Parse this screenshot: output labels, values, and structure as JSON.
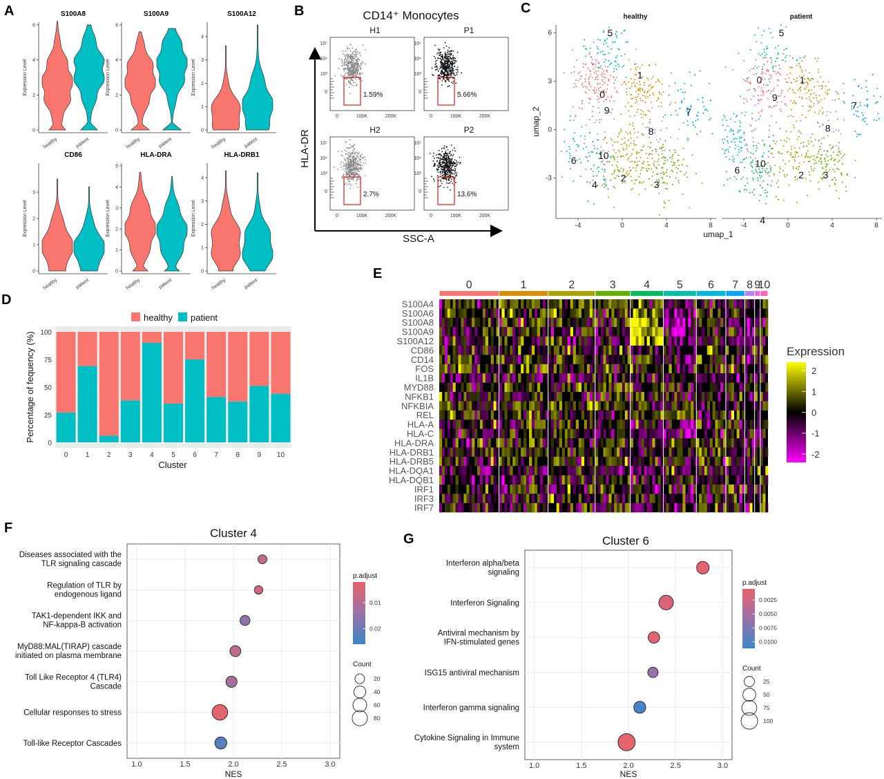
{
  "panel_labels": [
    "A",
    "B",
    "C",
    "D",
    "E",
    "F",
    "G"
  ],
  "colors": {
    "healthy": "#F8766D",
    "patient": "#00BFC4",
    "heat_low": "#FF00FF",
    "heat_mid": "#000000",
    "heat_high": "#FFFF00",
    "padj_high": "#E8636A",
    "padj_low": "#3A87C8",
    "gray_dots": "#888888",
    "gate": "#E00000"
  },
  "chart_data": [
    {
      "panel": "A",
      "type": "violin",
      "ylabel": "Expression Level",
      "groups": [
        "healthy",
        "patient"
      ],
      "genes": [
        {
          "name": "S100A8",
          "ylim": [
            0,
            6
          ],
          "ticks": [
            0,
            2,
            4,
            6
          ],
          "median": [
            2.6,
            3.4
          ],
          "max": [
            6.2,
            6.0
          ]
        },
        {
          "name": "S100A9",
          "ylim": [
            0,
            6
          ],
          "ticks": [
            0,
            2,
            4,
            6
          ],
          "median": [
            2.9,
            3.7
          ],
          "max": [
            5.6,
            5.8
          ]
        },
        {
          "name": "S100A12",
          "ylim": [
            0,
            4.5
          ],
          "ticks": [
            0,
            1,
            2,
            3,
            4
          ],
          "median": [
            0.6,
            0.9
          ],
          "max": [
            3.6,
            4.5
          ]
        },
        {
          "name": "CD86",
          "ylim": [
            0,
            4
          ],
          "ticks": [
            0,
            1,
            2,
            3
          ],
          "median": [
            0.9,
            0.8
          ],
          "max": [
            3.5,
            3.2
          ]
        },
        {
          "name": "HLA-DRA",
          "ylim": [
            0,
            5
          ],
          "ticks": [
            0,
            1,
            2,
            3,
            4,
            5
          ],
          "median": [
            2.0,
            1.8
          ],
          "max": [
            4.7,
            4.5
          ]
        },
        {
          "name": "HLA-DRB1",
          "ylim": [
            0,
            4.5
          ],
          "ticks": [
            0,
            1,
            2,
            3,
            4
          ],
          "median": [
            1.2,
            1.0
          ],
          "max": [
            4.3,
            4.2
          ]
        }
      ]
    },
    {
      "panel": "B",
      "type": "scatter",
      "title": "CD14⁺ Monocytes",
      "xlabel": "SSC-A",
      "ylabel": "HLA-DR",
      "x_ticks": [
        "0",
        "100K",
        "200K"
      ],
      "y_ticks": [
        "0",
        "10³",
        "10⁴",
        "10⁵"
      ],
      "plots": [
        {
          "name": "H1",
          "gate_percent": "1.59%"
        },
        {
          "name": "P1",
          "gate_percent": "5.66%"
        },
        {
          "name": "H2",
          "gate_percent": "2.7%"
        },
        {
          "name": "P2",
          "gate_percent": "13.6%"
        }
      ]
    },
    {
      "panel": "C",
      "type": "scatter",
      "xlabel": "umap_1",
      "ylabel": "umap_2",
      "xlim": [
        -6,
        8.5
      ],
      "ylim": [
        -5.5,
        6.5
      ],
      "x_ticks": [
        -4,
        0,
        4,
        8
      ],
      "y_ticks": [
        -3,
        0,
        3,
        6
      ],
      "facets": [
        "healthy",
        "patient"
      ],
      "cluster_colors": [
        "#F8766D",
        "#DB8E00",
        "#AEA200",
        "#64B200",
        "#00BD5C",
        "#00C1A7",
        "#00BADE",
        "#00A6FF",
        "#B385FF",
        "#EF67EB",
        "#FF63B6"
      ],
      "cluster_centers": [
        [
          -2.4,
          3
        ],
        [
          1.8,
          2.5
        ],
        [
          0.4,
          -1.8
        ],
        [
          3.6,
          -2.3
        ],
        [
          -2.8,
          -2.3
        ],
        [
          -1.4,
          4.9
        ],
        [
          -5.2,
          -0.7
        ],
        [
          6.8,
          1.4
        ],
        [
          3.2,
          0
        ],
        [
          -1.5,
          2
        ],
        [
          -2.2,
          -0.8
        ]
      ],
      "cluster_label_positions": {
        "healthy": [
          [
            -1.8,
            2.2
          ],
          [
            1.6,
            3.4
          ],
          [
            0.1,
            -3
          ],
          [
            3.1,
            -3.4
          ],
          [
            -2.5,
            -3.4
          ],
          [
            -1.1,
            6
          ],
          [
            -4.4,
            -1.9
          ],
          [
            6,
            1.1
          ],
          [
            2.6,
            -0.1
          ],
          [
            -1.4,
            1.2
          ],
          [
            -1.7,
            -1.6
          ]
        ],
        "patient": [
          [
            -2.6,
            3.1
          ],
          [
            1.3,
            3.1
          ],
          [
            1.2,
            -2.8
          ],
          [
            3.4,
            -2.8
          ],
          [
            -2.3,
            -5.6
          ],
          [
            -0.6,
            6
          ],
          [
            -4.6,
            -2.5
          ],
          [
            6,
            1.5
          ],
          [
            3.6,
            0.1
          ],
          [
            -1.2,
            2
          ],
          [
            -2.5,
            -2.1
          ]
        ],
        "labels": [
          "0",
          "1",
          "2",
          "3",
          "4",
          "5",
          "6",
          "7",
          "8",
          "9",
          "10"
        ]
      }
    },
    {
      "panel": "D",
      "type": "bar",
      "stacked": true,
      "categories": [
        "0",
        "1",
        "2",
        "3",
        "4",
        "5",
        "6",
        "7",
        "8",
        "9",
        "10"
      ],
      "series": [
        {
          "name": "patient",
          "values": [
            27,
            69,
            6,
            38,
            90,
            35,
            75,
            41,
            37,
            51,
            44
          ]
        },
        {
          "name": "healthy",
          "values": [
            73,
            31,
            94,
            62,
            10,
            65,
            25,
            59,
            63,
            49,
            56
          ]
        }
      ],
      "xlabel": "Cluster",
      "ylabel": "Percentage of fequency (%)",
      "ylim": [
        0,
        100
      ],
      "y_ticks": [
        0,
        25,
        50,
        75,
        100
      ],
      "legend": "top"
    },
    {
      "panel": "E",
      "type": "heatmap",
      "columns": [
        "0",
        "1",
        "2",
        "3",
        "4",
        "5",
        "6",
        "7",
        "8",
        "9",
        "10"
      ],
      "column_widths": [
        85,
        70,
        67,
        50,
        47,
        47,
        42,
        27,
        14,
        8,
        11
      ],
      "column_colors": [
        "#F8766D",
        "#DB8E00",
        "#AEA200",
        "#64B200",
        "#00BD5C",
        "#00C1A7",
        "#00BADE",
        "#00A6FF",
        "#B385FF",
        "#EF67EB",
        "#FF63B6"
      ],
      "rows": [
        "S100A4",
        "S100A6",
        "S100A8",
        "S100A9",
        "S100A12",
        "CD86",
        "CD14",
        "FOS",
        "IL1B",
        "MYD88",
        "NFKB1",
        "NFKBIA",
        "REL",
        "HLA-A",
        "HLA-C",
        "HLA-DRA",
        "HLA-DRB1",
        "HLA-DRB5",
        "HLA-DQA1",
        "HLA-DQB1",
        "IRF1",
        "IRF3",
        "IRF7"
      ],
      "legend_title": "Expression",
      "legend_ticks": [
        2,
        1,
        0,
        -1,
        -2
      ],
      "legend_range": [
        -2.4,
        2.4
      ],
      "row_bias": [
        [
          0.4,
          0.6,
          0.5,
          0.3,
          0.9,
          -1.2,
          0.3,
          0.1,
          -0.5,
          0,
          0
        ],
        [
          0.3,
          0.5,
          0.4,
          0.3,
          0.9,
          -1,
          0.4,
          0.2,
          -0.5,
          0,
          0
        ],
        [
          -0.1,
          0.1,
          0,
          -0.1,
          1.8,
          -1.2,
          -0.2,
          -0.5,
          -0.8,
          -0.4,
          0
        ],
        [
          -0.1,
          0.1,
          0,
          -0.1,
          1.8,
          -1.2,
          -0.2,
          -0.5,
          -0.8,
          -0.4,
          0
        ],
        [
          -0.2,
          0,
          -0.1,
          -0.3,
          1.8,
          -1.1,
          -0.3,
          -0.6,
          -0.6,
          -0.4,
          0
        ],
        [
          0.2,
          0.3,
          0.2,
          0.5,
          -0.2,
          -0.3,
          0.2,
          0.3,
          0.1,
          0,
          0
        ],
        [
          0.3,
          0.4,
          0.3,
          0.2,
          0.5,
          -0.5,
          0.2,
          0.1,
          -0.3,
          0,
          0
        ],
        [
          0.2,
          0.6,
          0.4,
          0.3,
          0.3,
          0,
          0.3,
          0.3,
          0,
          0,
          0
        ],
        [
          -0.3,
          -0.4,
          -0.3,
          -0.3,
          -0.2,
          -0.5,
          -0.1,
          -0.2,
          -0.4,
          0,
          0
        ],
        [
          0.2,
          0.2,
          0.2,
          0.2,
          0.1,
          0,
          0.1,
          0.2,
          0,
          0,
          0
        ],
        [
          0.1,
          0.1,
          0.1,
          0.1,
          0,
          0,
          0,
          0.1,
          0,
          0,
          0
        ],
        [
          0.2,
          0.4,
          0.3,
          0.2,
          0.2,
          0.1,
          0.2,
          0.2,
          0,
          0,
          0
        ],
        [
          0.1,
          0.2,
          0.1,
          0.1,
          0,
          0,
          0.1,
          0,
          0,
          0,
          0
        ],
        [
          -0.3,
          0,
          -0.2,
          -0.1,
          -0.5,
          -0.8,
          -0.2,
          -0.3,
          -0.3,
          0,
          0
        ],
        [
          -0.2,
          0,
          -0.2,
          -0.1,
          -0.6,
          -0.8,
          -0.2,
          -0.2,
          -0.3,
          0,
          0
        ],
        [
          0.3,
          0.2,
          0.3,
          0.4,
          -0.1,
          0.1,
          0.3,
          0.2,
          0,
          0,
          0
        ],
        [
          0.3,
          0.2,
          0.3,
          0.4,
          0,
          0.1,
          0.3,
          0.2,
          0,
          0,
          0
        ],
        [
          0.4,
          0.2,
          0.4,
          0.6,
          -0.1,
          0.1,
          0.2,
          0.3,
          0.1,
          0,
          0
        ],
        [
          -0.4,
          -0.3,
          -0.3,
          -0.2,
          -0.6,
          -0.2,
          -0.4,
          -0.3,
          -0.2,
          0,
          0
        ],
        [
          -0.2,
          -0.1,
          -0.1,
          0,
          -0.4,
          0,
          -0.3,
          -0.2,
          -0.1,
          0,
          0
        ],
        [
          0,
          0.1,
          0,
          0,
          -0.2,
          0,
          0.1,
          0,
          0,
          0,
          0
        ],
        [
          0,
          0,
          0,
          0,
          0,
          0,
          0,
          0,
          0,
          0,
          0
        ],
        [
          -0.2,
          -0.1,
          -0.1,
          -0.2,
          -0.4,
          -0.3,
          0.1,
          -0.2,
          -0.1,
          0,
          0
        ]
      ]
    },
    {
      "panel": "F",
      "type": "scatter",
      "title": "Cluster 4",
      "xlabel": "NES",
      "xlim": [
        0.9,
        3.1
      ],
      "x_ticks": [
        "1.0",
        "1.5",
        "2.0",
        "2.5",
        "3.0"
      ],
      "points": [
        {
          "label": [
            "Diseases associated with the",
            "TLR signaling cascade"
          ],
          "nes": 2.3,
          "count": 15,
          "padj": 0.008
        },
        {
          "label": [
            "Regulation of TLR by",
            "endogenous ligand"
          ],
          "nes": 2.26,
          "count": 12,
          "padj": 0.006
        },
        {
          "label": [
            "TAK1-dependent IKK and",
            "NF-kappa-B activation"
          ],
          "nes": 2.12,
          "count": 22,
          "padj": 0.015
        },
        {
          "label": [
            "MyD88:MAL(TIRAP) cascade",
            "initiated on plasma membrane"
          ],
          "nes": 2.02,
          "count": 30,
          "padj": 0.009
        },
        {
          "label": [
            "Toll Like Receptor 4 (TLR4)",
            "Cascade"
          ],
          "nes": 1.98,
          "count": 32,
          "padj": 0.012
        },
        {
          "label": [
            "Cellular responses to stress"
          ],
          "nes": 1.86,
          "count": 85,
          "padj": 0.003
        },
        {
          "label": [
            "Toll-like Receptor Cascades"
          ],
          "nes": 1.87,
          "count": 40,
          "padj": 0.022
        }
      ],
      "color_legend": {
        "title": "p.adjust",
        "ticks": [
          "0.01",
          "0.02"
        ],
        "tick_values": [
          0.01,
          0.02
        ],
        "range": [
          0.002,
          0.026
        ]
      },
      "size_legend": {
        "title": "Count",
        "values": [
          20,
          40,
          60,
          80
        ]
      }
    },
    {
      "panel": "G",
      "type": "scatter",
      "title": "Cluster 6",
      "xlabel": "NES",
      "xlim": [
        0.9,
        3.1
      ],
      "x_ticks": [
        "1.0",
        "1.5",
        "2.0",
        "2.5",
        "3.0"
      ],
      "points": [
        {
          "label": [
            "Interferon alpha/beta",
            "signaling"
          ],
          "nes": 2.79,
          "count": 45,
          "padj": 0.001
        },
        {
          "label": [
            "Interferon Signaling"
          ],
          "nes": 2.4,
          "count": 70,
          "padj": 0.0015
        },
        {
          "label": [
            "Antiviral mechanism by",
            "IFN-stimulated genes"
          ],
          "nes": 2.27,
          "count": 35,
          "padj": 0.0012
        },
        {
          "label": [
            "ISG15 antiviral mechanism"
          ],
          "nes": 2.26,
          "count": 25,
          "padj": 0.006
        },
        {
          "label": [
            "Interferon gamma signaling"
          ],
          "nes": 2.12,
          "count": 40,
          "padj": 0.0105
        },
        {
          "label": [
            "Cytokine Signaling in Immune",
            "system"
          ],
          "nes": 1.98,
          "count": 110,
          "padj": 0.0008
        }
      ],
      "color_legend": {
        "title": "p.adjust",
        "ticks": [
          "0.0025",
          "0.0050",
          "0.0075",
          "0.0100"
        ],
        "tick_values": [
          0.0025,
          0.005,
          0.0075,
          0.01
        ],
        "range": [
          0.0005,
          0.0112
        ]
      },
      "size_legend": {
        "title": "Count",
        "values": [
          25,
          50,
          75,
          100
        ]
      }
    }
  ]
}
